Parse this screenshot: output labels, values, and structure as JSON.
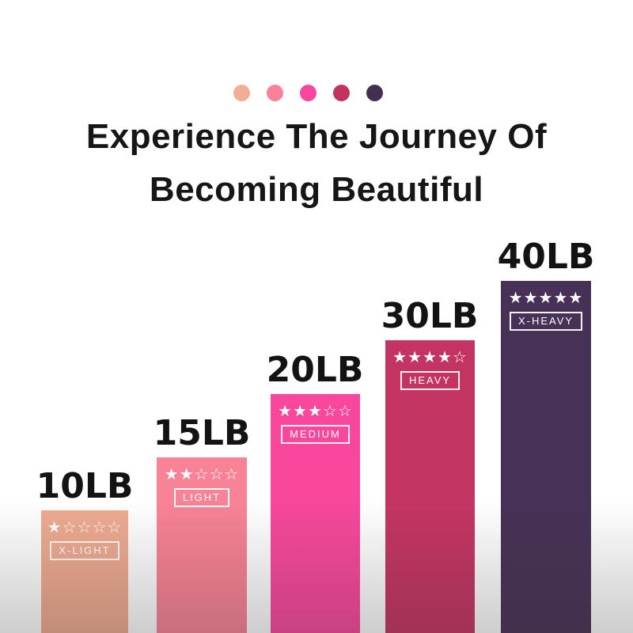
{
  "title": {
    "line1": "Experience The Journey Of",
    "line2": "Becoming Beautiful"
  },
  "palette": {
    "dots": [
      {
        "name": "x-light-dot",
        "color": "#f1ae92"
      },
      {
        "name": "light-dot",
        "color": "#f9819a"
      },
      {
        "name": "medium-dot",
        "color": "#f8479c"
      },
      {
        "name": "heavy-dot",
        "color": "#c2335f"
      },
      {
        "name": "x-heavy-dot",
        "color": "#433050"
      }
    ]
  },
  "bars": [
    {
      "weight_label": "10LB",
      "weight_lb": 10,
      "level": "X-LIGHT",
      "stars": 1,
      "stars_display": "★☆☆☆☆",
      "color": "#eeab91"
    },
    {
      "weight_label": "15LB",
      "weight_lb": 15,
      "level": "LIGHT",
      "stars": 2,
      "stars_display": "★★☆☆☆",
      "color": "#f88296"
    },
    {
      "weight_label": "20LB",
      "weight_lb": 20,
      "level": "MEDIUM",
      "stars": 3,
      "stars_display": "★★★☆☆",
      "color": "#f8479c"
    },
    {
      "weight_label": "30LB",
      "weight_lb": 30,
      "level": "HEAVY",
      "stars": 4,
      "stars_display": "★★★★☆",
      "color": "#c43462"
    },
    {
      "weight_label": "40LB",
      "weight_lb": 40,
      "level": "X-HEAVY",
      "stars": 5,
      "stars_display": "★★★★★",
      "color": "#473156"
    }
  ],
  "chart_data": {
    "type": "bar",
    "title": "Experience The Journey Of Becoming Beautiful",
    "categories": [
      "10LB",
      "15LB",
      "20LB",
      "30LB",
      "40LB"
    ],
    "values": [
      10,
      15,
      20,
      30,
      40
    ],
    "series": [
      {
        "name": "resistance_weight_lb",
        "values": [
          10,
          15,
          20,
          30,
          40
        ]
      },
      {
        "name": "star_rating_of_5",
        "values": [
          1,
          2,
          3,
          4,
          5
        ]
      },
      {
        "name": "relative_bar_height_px",
        "values": [
          155,
          222,
          302,
          370,
          445
        ]
      }
    ],
    "bar_labels": [
      "X-LIGHT",
      "LIGHT",
      "MEDIUM",
      "HEAVY",
      "X-HEAVY"
    ],
    "bar_colors": [
      "#eeab91",
      "#f88296",
      "#f8479c",
      "#c43462",
      "#473156"
    ],
    "xlabel": "",
    "ylabel": "",
    "legend_position": "none",
    "grid": false,
    "axes_shown": false
  }
}
